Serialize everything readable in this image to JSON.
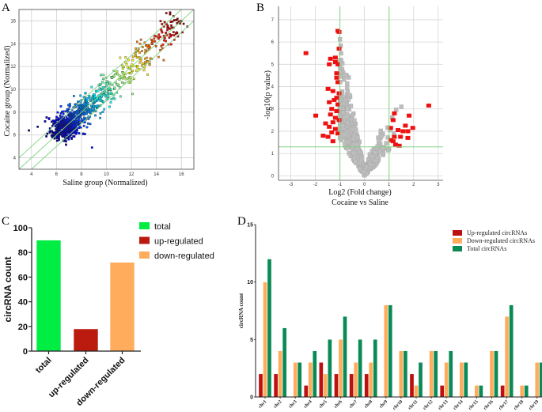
{
  "figure": {
    "panels": [
      "A",
      "B",
      "C",
      "D"
    ]
  },
  "colors": {
    "scatter_diag": "#7fd67f",
    "volcano_sig": "#ee1111",
    "volcano_ns": "#bdbdbd",
    "volcano_threshold": "#7fd67f",
    "c_total": "#00ee44",
    "c_up": "#bb1a0e",
    "c_down": "#ffad5c",
    "d_up": "#bb1111",
    "d_down": "#ffad5c",
    "d_total": "#0a8a55"
  },
  "chart_data": [
    {
      "panel": "A",
      "type": "scatter",
      "title": "",
      "xlabel": "Saline group (Normalized)",
      "ylabel": "Cocaine group (Normalized)",
      "xlim": [
        3,
        17
      ],
      "ylim": [
        3,
        17
      ],
      "xticks": [
        4,
        6,
        8,
        10,
        12,
        14,
        16
      ],
      "yticks": [
        4,
        6,
        8,
        10,
        12,
        14,
        16
      ],
      "grid": true,
      "reference_lines": [
        {
          "label": "y = x + 1",
          "intercept": 1
        },
        {
          "label": "y = x",
          "intercept": 0
        },
        {
          "label": "y = x - 1",
          "intercept": -1
        }
      ],
      "colormap": "jet (blue low → red high expression)",
      "description": "Approximately 1000 circRNAs; dense cluster around x 5.5–9, y 5.5–9, tapering along the diagonal to ~16. Outliers at (3.8, 6.4), (12.1, 9.6), (13.3, 11.3).",
      "notable_points": [
        {
          "x": 3.8,
          "y": 6.4
        },
        {
          "x": 12.1,
          "y": 9.6
        },
        {
          "x": 13.3,
          "y": 11.3
        },
        {
          "x": 16.0,
          "y": 16.0
        },
        {
          "x": 15.2,
          "y": 15.6
        },
        {
          "x": 14.2,
          "y": 14.8
        }
      ]
    },
    {
      "panel": "B",
      "type": "scatter",
      "title": "",
      "xlabel": "Log2 (Fold change)",
      "xlabel2": "Cocaine vs Saline",
      "ylabel": "-log10(p value)",
      "xlim": [
        -3.5,
        3.2
      ],
      "ylim": [
        -0.2,
        7.6
      ],
      "xticks": [
        -3,
        -2,
        -1,
        0,
        1,
        2,
        3
      ],
      "yticks": [
        0,
        1,
        2,
        3,
        4,
        5,
        6,
        7
      ],
      "grid": true,
      "thresholds": {
        "x": [
          -1,
          1
        ],
        "y": 1.3
      },
      "series": [
        {
          "name": "significant",
          "color": "red",
          "points": [
            [
              -2.4,
              5.5
            ],
            [
              -2.0,
              2.7
            ],
            [
              -1.7,
              1.8
            ],
            [
              -1.3,
              1.55
            ],
            [
              -1.1,
              6.5
            ],
            [
              -1.05,
              6.45
            ],
            [
              -1.05,
              5.7
            ],
            [
              -1.4,
              5.25
            ],
            [
              -1.2,
              5.3
            ],
            [
              -1.45,
              5.0
            ],
            [
              -1.1,
              5.0
            ],
            [
              -1.2,
              5.1
            ],
            [
              -1.15,
              4.6
            ],
            [
              -1.15,
              4.4
            ],
            [
              -1.1,
              4.2
            ],
            [
              -1.5,
              3.9
            ],
            [
              -1.3,
              3.8
            ],
            [
              -1.05,
              3.7
            ],
            [
              -1.15,
              3.5
            ],
            [
              -1.25,
              3.4
            ],
            [
              -1.45,
              3.3
            ],
            [
              -1.1,
              3.2
            ],
            [
              -1.35,
              3.0
            ],
            [
              -1.15,
              2.9
            ],
            [
              -1.4,
              2.75
            ],
            [
              -1.2,
              2.6
            ],
            [
              -1.6,
              2.35
            ],
            [
              -1.3,
              2.4
            ],
            [
              -1.05,
              2.5
            ],
            [
              -1.45,
              2.2
            ],
            [
              -1.2,
              2.1
            ],
            [
              -1.35,
              1.95
            ],
            [
              -1.1,
              1.9
            ],
            [
              -1.5,
              1.75
            ],
            [
              1.2,
              2.8
            ],
            [
              1.15,
              2.5
            ],
            [
              1.8,
              2.7
            ],
            [
              2.6,
              3.15
            ],
            [
              1.05,
              2.15
            ],
            [
              1.65,
              2.25
            ],
            [
              1.95,
              2.15
            ],
            [
              1.35,
              2.05
            ],
            [
              1.55,
              2.0
            ],
            [
              1.75,
              2.0
            ],
            [
              1.2,
              1.75
            ],
            [
              1.45,
              1.75
            ],
            [
              1.75,
              1.7
            ],
            [
              1.15,
              1.55
            ],
            [
              1.25,
              1.4
            ],
            [
              1.4,
              1.35
            ],
            [
              1.05,
              1.6
            ]
          ]
        },
        {
          "name": "not significant",
          "color": "grey",
          "description": "V-shaped cloud of several hundred points between x -1 and 1.5, y 0 to 6.6, vertex at (0, 0)."
        }
      ]
    },
    {
      "panel": "C",
      "type": "bar",
      "title": "",
      "xlabel": "",
      "ylabel": "circRNA count",
      "categories": [
        "total",
        "up-regulated",
        "down-regulated"
      ],
      "values": [
        90,
        18,
        72
      ],
      "ylim": [
        0,
        100
      ],
      "yticks": [
        0,
        20,
        40,
        60,
        80,
        100
      ],
      "legend": {
        "position": "top-right",
        "entries": [
          "total",
          "up-regulated",
          "down-regulated"
        ]
      },
      "grid": false
    },
    {
      "panel": "D",
      "type": "bar",
      "title": "",
      "xlabel": "",
      "ylabel": "circRNA count",
      "categories": [
        "chr1",
        "chr2",
        "chr3",
        "chr4",
        "chr5",
        "chr6",
        "chr7",
        "chr8",
        "chr9",
        "chr10",
        "chr11",
        "chr12",
        "chr13",
        "chr14",
        "chr15",
        "chr16",
        "chr17",
        "chr18",
        "chr19"
      ],
      "series": [
        {
          "name": "Up-regulated circRNAs",
          "values": [
            2,
            2,
            0,
            1,
            3,
            2,
            2,
            2,
            0,
            0,
            2,
            0,
            1,
            0,
            0,
            0,
            1,
            0,
            0
          ]
        },
        {
          "name": "Down-regulated circRNAs",
          "values": [
            10,
            4,
            3,
            3,
            2,
            5,
            3,
            3,
            8,
            4,
            1,
            4,
            3,
            3,
            1,
            4,
            7,
            1,
            3
          ]
        },
        {
          "name": "Total circRNAs",
          "values": [
            12,
            6,
            3,
            4,
            5,
            7,
            5,
            5,
            8,
            4,
            3,
            4,
            4,
            3,
            1,
            4,
            8,
            1,
            3
          ]
        }
      ],
      "ylim": [
        0,
        15
      ],
      "yticks": [
        0,
        5,
        10,
        15
      ],
      "legend": {
        "position": "top-right"
      },
      "grid": false
    }
  ]
}
